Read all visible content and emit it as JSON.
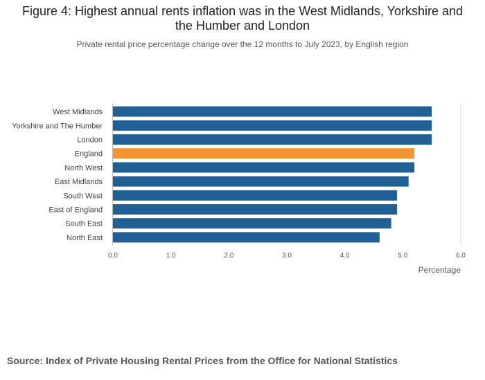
{
  "chart_data": {
    "type": "bar",
    "orientation": "horizontal",
    "title": "Figure 4: Highest annual rents inflation was in the West Midlands, Yorkshire and the Humber and London",
    "subtitle": "Private rental price percentage change over the 12 months to July 2023, by English region",
    "categories": [
      "West Midlands",
      "Yorkshire and The Humber",
      "London",
      "England",
      "North West",
      "East Midlands",
      "South West",
      "East of England",
      "South East",
      "North East"
    ],
    "values": [
      5.5,
      5.5,
      5.5,
      5.2,
      5.2,
      5.1,
      4.9,
      4.9,
      4.8,
      4.6
    ],
    "highlight_category": "England",
    "xlabel": "Percentage",
    "ylabel": "",
    "xlim": [
      0,
      6
    ],
    "xticks": [
      "0.0",
      "1.0",
      "2.0",
      "3.0",
      "4.0",
      "5.0",
      "6.0"
    ],
    "colors": {
      "default": "#206095",
      "highlight": "#f39431",
      "axis": "#bcbcbc",
      "text": "#414042"
    },
    "source": "Source: Index of Private Housing Rental Prices from the Office for National Statistics"
  }
}
